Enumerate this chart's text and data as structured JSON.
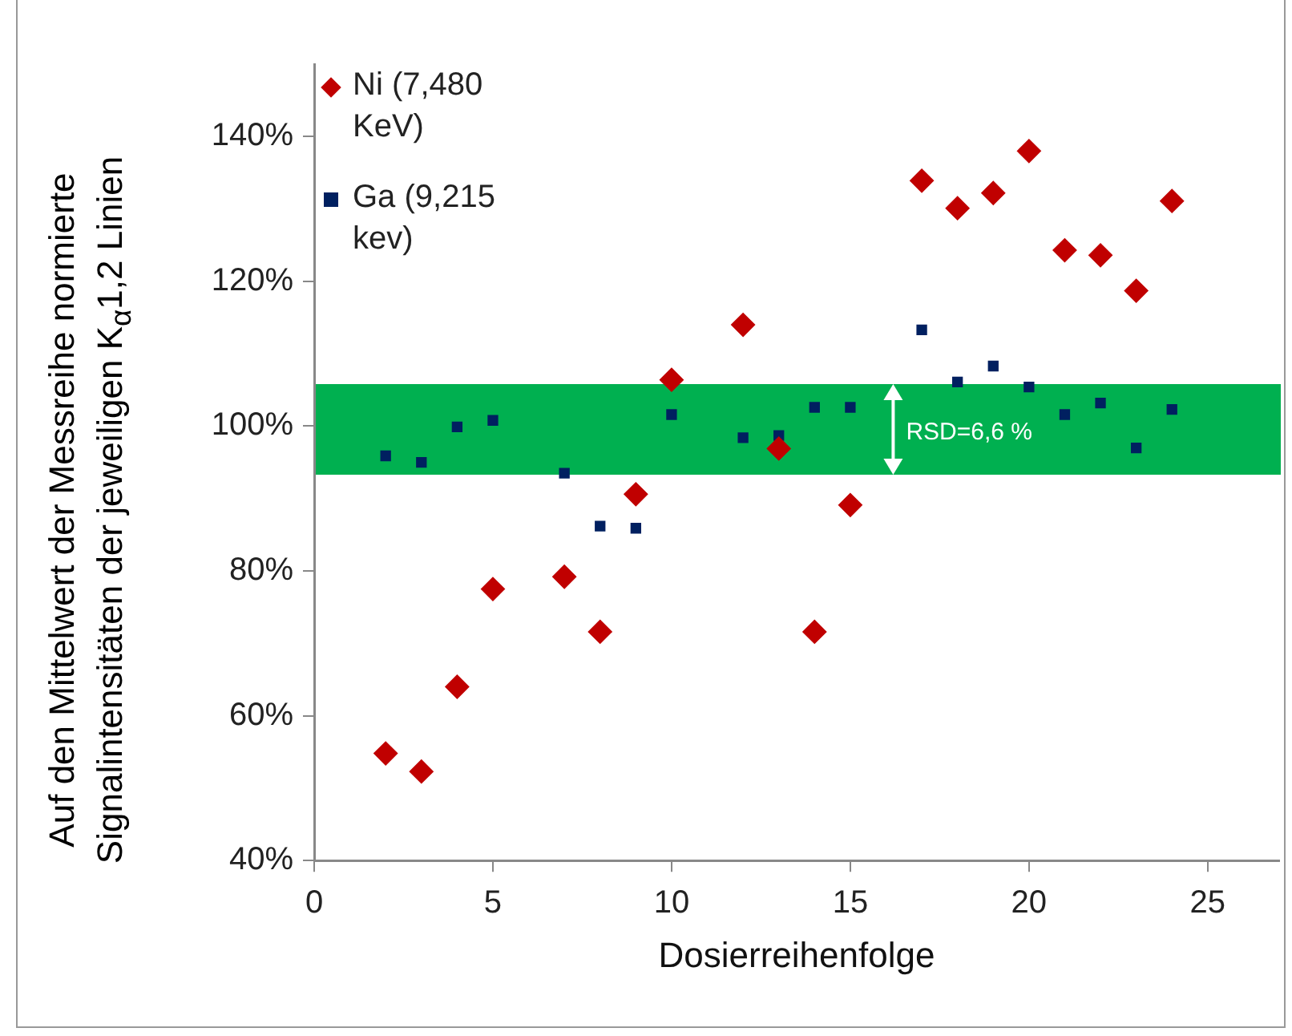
{
  "chart_data": {
    "type": "scatter",
    "xlabel": "Dosierreihenfolge",
    "ylabel": "Auf den Mittelwert der Messreihe normierte Signalintensitäten der jeweiligen K$_{α}$1,2 Linien",
    "xlim": [
      0,
      27
    ],
    "xticks": [
      0,
      5,
      10,
      15,
      20,
      25
    ],
    "ylim": [
      40,
      150
    ],
    "yticks": [
      {
        "value": 40,
        "label": "40%"
      },
      {
        "value": 60,
        "label": "60%"
      },
      {
        "value": 80,
        "label": "80%"
      },
      {
        "value": 100,
        "label": "100%"
      },
      {
        "value": 120,
        "label": "120%"
      },
      {
        "value": 140,
        "label": "140%"
      }
    ],
    "grid": false,
    "legend": "top left",
    "series": [
      {
        "name": "Ni (7,480 KeV)",
        "color": "#c00000",
        "marker": "diamond",
        "x": [
          2,
          3,
          4,
          5,
          7,
          8,
          9,
          10,
          12,
          13,
          14,
          15,
          17,
          18,
          19,
          20,
          21,
          22,
          23,
          24
        ],
        "values": [
          54.8,
          52.3,
          64.0,
          77.5,
          79.2,
          71.6,
          90.6,
          106.4,
          114.0,
          96.9,
          71.6,
          89.1,
          133.9,
          130.1,
          132.2,
          138.0,
          124.3,
          123.6,
          118.7,
          131.1
        ]
      },
      {
        "name": "Ga (9,215 kev)",
        "color": "#002060",
        "marker": "square",
        "x": [
          2,
          3,
          4,
          5,
          7,
          8,
          9,
          10,
          12,
          13,
          14,
          15,
          17,
          18,
          19,
          20,
          21,
          22,
          23,
          24
        ],
        "values": [
          95.9,
          95.0,
          99.9,
          100.8,
          93.5,
          86.2,
          85.9,
          101.6,
          98.4,
          98.7,
          102.6,
          102.6,
          113.3,
          106.1,
          108.3,
          105.4,
          101.6,
          103.2,
          97.0,
          102.3
        ]
      }
    ],
    "bands": [
      {
        "axis": "y",
        "from": 93.3,
        "to": 105.8,
        "color": "#00b050"
      }
    ],
    "annotations": [
      {
        "text": "RSD=6,6 %",
        "x": 16.2,
        "y": 105.8
      }
    ]
  }
}
